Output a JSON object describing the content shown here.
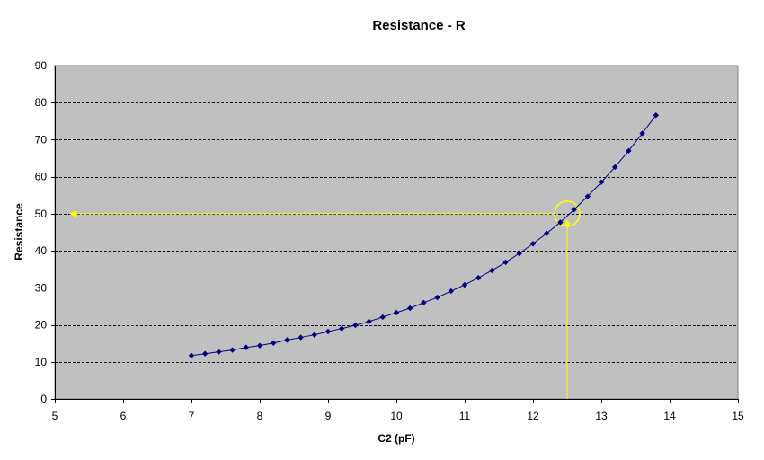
{
  "chart_data": {
    "type": "line",
    "title": "Resistance - R",
    "xlabel": "C2 (pF)",
    "ylabel": "Resistance",
    "xlim": [
      5,
      15
    ],
    "ylim": [
      0,
      90
    ],
    "x_ticks": [
      5,
      6,
      7,
      8,
      9,
      10,
      11,
      12,
      13,
      14,
      15
    ],
    "y_ticks": [
      0,
      10,
      20,
      30,
      40,
      50,
      60,
      70,
      80,
      90
    ],
    "grid": true,
    "colors": {
      "plot_background": "#c0c0c0",
      "series": "#000080",
      "annotation": "#ffff00",
      "gridline": "#000000"
    },
    "series": [
      {
        "x": [
          7.0,
          7.2,
          7.4,
          7.6,
          7.8,
          8.0,
          8.2,
          8.4,
          8.6,
          8.8,
          9.0,
          9.2,
          9.4,
          9.6,
          9.8,
          10.0,
          10.2,
          10.4,
          10.6,
          10.8,
          11.0,
          11.2,
          11.4,
          11.6,
          11.8,
          12.0,
          12.2,
          12.4,
          12.6,
          12.8,
          13.0,
          13.2,
          13.4,
          13.6,
          13.8
        ],
        "y": [
          11.7,
          12.2,
          12.7,
          13.2,
          13.9,
          14.4,
          15.1,
          15.9,
          16.6,
          17.3,
          18.2,
          19.0,
          19.9,
          20.9,
          22.1,
          23.3,
          24.5,
          26.0,
          27.4,
          29.1,
          30.8,
          32.7,
          34.7,
          36.9,
          39.3,
          41.9,
          44.7,
          47.7,
          51.1,
          54.7,
          58.5,
          62.6,
          67.0,
          71.7,
          76.6
        ]
      }
    ],
    "annotation": {
      "point": [
        12.5,
        50
      ],
      "arrow_from_x_axis_at": 12.5,
      "arrow_to_y": 50,
      "arrow_to_x": 5.25
    }
  }
}
